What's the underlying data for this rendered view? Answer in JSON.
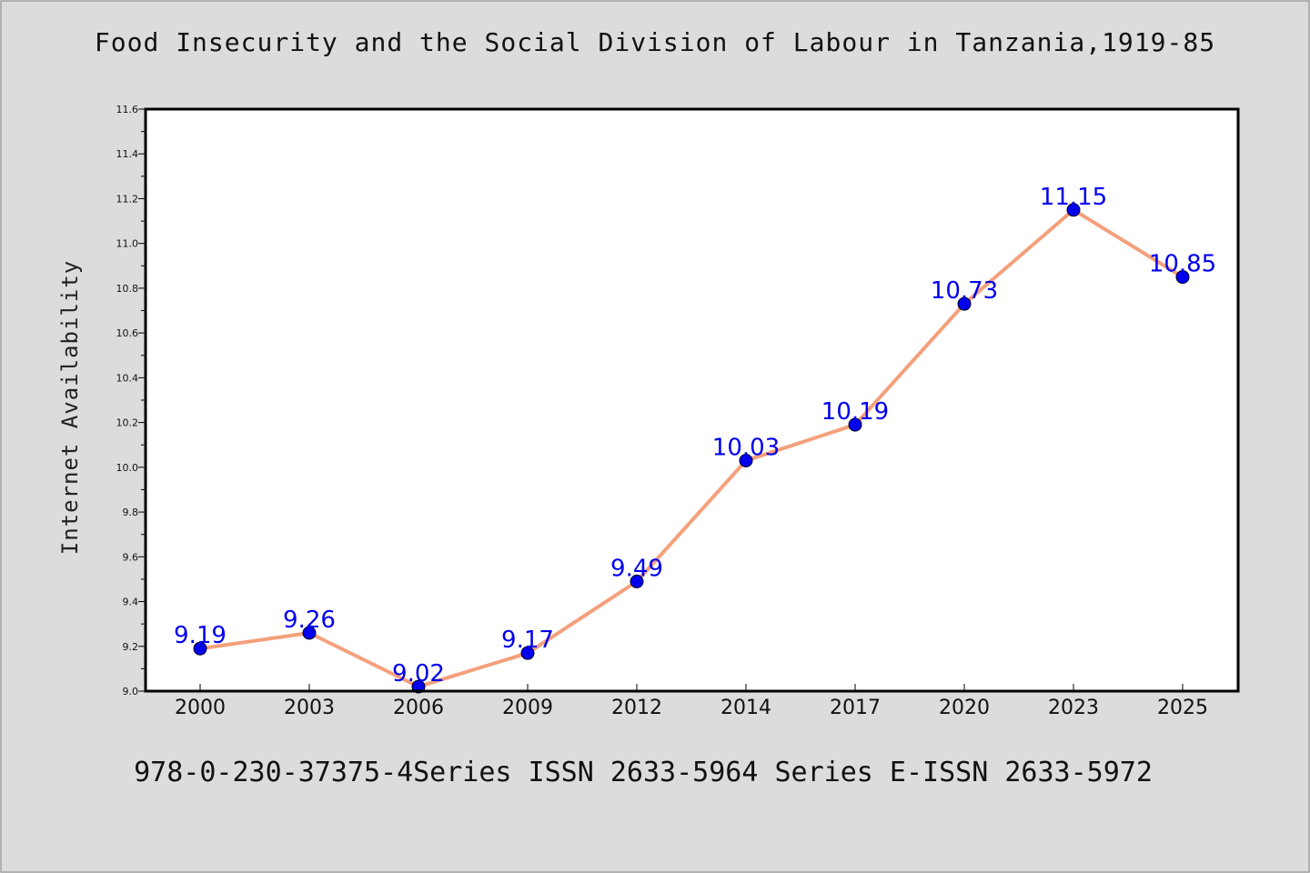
{
  "page": {
    "title": "Food Insecurity and the Social Division of Labour in Tanzania,1919-85",
    "footer": "978-0-230-37375-4Series ISSN 2633-5964 Series E-ISSN 2633-5972"
  },
  "chart_data": {
    "type": "line",
    "title": "Food Insecurity and the Social Division of Labour in Tanzania,1919-85",
    "xlabel": "",
    "ylabel": "Internet Availability",
    "categories": [
      "2000",
      "2003",
      "2006",
      "2009",
      "2012",
      "2014",
      "2017",
      "2020",
      "2023",
      "2025"
    ],
    "series": [
      {
        "values": [
          9.19,
          9.26,
          9.02,
          9.17,
          9.49,
          10.03,
          10.19,
          10.73,
          11.15,
          10.85
        ],
        "data_labels": [
          "9.19",
          "9.26",
          "9.02",
          "9.17",
          "9.49",
          "10.03",
          "10.19",
          "10.73",
          "11.15",
          "10.85"
        ],
        "line_color": "#f4a07c",
        "marker_color": "#0000ee"
      }
    ],
    "ylim": [
      9.0,
      11.6
    ],
    "yticks": [
      "9.0",
      "9.2",
      "9.4",
      "9.6",
      "9.8",
      "10.0",
      "10.2",
      "10.4",
      "10.6",
      "10.8",
      "11.0",
      "11.2",
      "11.4",
      "11.6"
    ],
    "grid": false,
    "legend": "none",
    "label_color": "#0000ee",
    "background": "#dcdcdc",
    "plot_background": "#ffffff"
  }
}
